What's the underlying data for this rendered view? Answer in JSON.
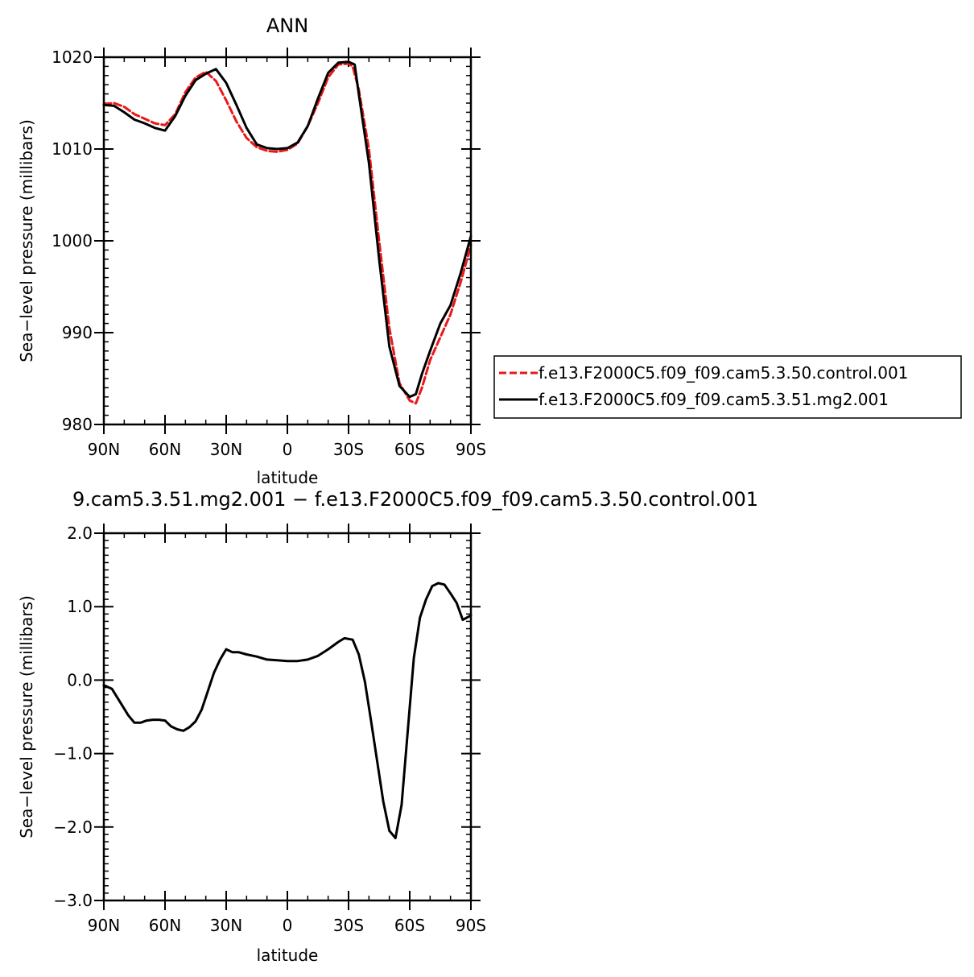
{
  "chart_data": [
    {
      "type": "line",
      "title": "ANN",
      "xlabel": "latitude",
      "ylabel": "Sea−level pressure (millibars)",
      "x_ticks": [
        {
          "value": 90,
          "label": "90N"
        },
        {
          "value": 60,
          "label": "60N"
        },
        {
          "value": 30,
          "label": "30N"
        },
        {
          "value": 0,
          "label": "0"
        },
        {
          "value": -30,
          "label": "30S"
        },
        {
          "value": -60,
          "label": "60S"
        },
        {
          "value": -90,
          "label": "90S"
        }
      ],
      "y_ticks": [
        {
          "value": 980,
          "label": "980"
        },
        {
          "value": 990,
          "label": "990"
        },
        {
          "value": 1000,
          "label": "1000"
        },
        {
          "value": 1010,
          "label": "1010"
        },
        {
          "value": 1020,
          "label": "1020"
        }
      ],
      "xlim": [
        90,
        -90
      ],
      "ylim": [
        980,
        1020
      ],
      "legend": "right",
      "series": [
        {
          "name": "f.e13.F2000C5.f09_f09.cam5.3.50.control.001",
          "color": "#e8191a",
          "dashed": true,
          "x": [
            90,
            85,
            80,
            75,
            70,
            65,
            60,
            55,
            50,
            45,
            40,
            35,
            30,
            25,
            20,
            15,
            10,
            5,
            0,
            -5,
            -10,
            -15,
            -20,
            -25,
            -30,
            -32,
            -35,
            -40,
            -45,
            -50,
            -55,
            -60,
            -63,
            -66,
            -70,
            -75,
            -80,
            -85,
            -90
          ],
          "y": [
            1014.9,
            1015.0,
            1014.6,
            1013.8,
            1013.3,
            1012.8,
            1012.6,
            1013.8,
            1016.2,
            1017.8,
            1018.4,
            1017.4,
            1015.3,
            1013.0,
            1011.2,
            1010.2,
            1009.8,
            1009.7,
            1009.9,
            1010.6,
            1012.5,
            1015.0,
            1017.8,
            1019.2,
            1019.3,
            1019.0,
            1016.5,
            1010.0,
            1000.0,
            990.5,
            984.5,
            982.6,
            982.3,
            984.0,
            987.0,
            989.5,
            992.0,
            995.5,
            999.5
          ]
        },
        {
          "name": "f.e13.F2000C5.f09_f09.cam5.3.51.mg2.001",
          "color": "#000000",
          "dashed": false,
          "x": [
            90,
            85,
            80,
            75,
            70,
            65,
            60,
            55,
            50,
            45,
            40,
            35,
            30,
            25,
            20,
            15,
            10,
            5,
            0,
            -5,
            -10,
            -15,
            -20,
            -25,
            -30,
            -33,
            -35,
            -40,
            -45,
            -50,
            -55,
            -60,
            -63,
            -66,
            -70,
            -75,
            -80,
            -85,
            -90
          ],
          "y": [
            1014.8,
            1014.7,
            1014.0,
            1013.2,
            1012.8,
            1012.3,
            1012.0,
            1013.6,
            1015.8,
            1017.5,
            1018.2,
            1018.7,
            1017.2,
            1014.8,
            1012.3,
            1010.5,
            1010.1,
            1010.0,
            1010.1,
            1010.7,
            1012.5,
            1015.5,
            1018.3,
            1019.4,
            1019.5,
            1019.2,
            1016.0,
            1008.5,
            998.0,
            988.5,
            984.2,
            983.0,
            983.3,
            985.5,
            988.0,
            991.0,
            993.0,
            996.5,
            1000.5
          ]
        }
      ]
    },
    {
      "type": "line",
      "title": "9.cam5.3.51.mg2.001 − f.e13.F2000C5.f09_f09.cam5.3.50.control.001",
      "xlabel": "latitude",
      "ylabel": "Sea−level pressure (millibars)",
      "x_ticks": [
        {
          "value": 90,
          "label": "90N"
        },
        {
          "value": 60,
          "label": "60N"
        },
        {
          "value": 30,
          "label": "30N"
        },
        {
          "value": 0,
          "label": "0"
        },
        {
          "value": -30,
          "label": "30S"
        },
        {
          "value": -60,
          "label": "60S"
        },
        {
          "value": -90,
          "label": "90S"
        }
      ],
      "y_ticks": [
        {
          "value": -3.0,
          "label": "−3.0"
        },
        {
          "value": -2.0,
          "label": "−2.0"
        },
        {
          "value": -1.0,
          "label": "−1.0"
        },
        {
          "value": 0.0,
          "label": "0.0"
        },
        {
          "value": 1.0,
          "label": "1.0"
        },
        {
          "value": 2.0,
          "label": "2.0"
        }
      ],
      "xlim": [
        90,
        -90
      ],
      "ylim": [
        -3.0,
        2.0
      ],
      "series": [
        {
          "color": "#000000",
          "dashed": false,
          "x": [
            90,
            86,
            82,
            78,
            75,
            72,
            69,
            66,
            63,
            60,
            57,
            54,
            51,
            48,
            45,
            42,
            39,
            36,
            33,
            30,
            27,
            24,
            20,
            15,
            10,
            5,
            0,
            -5,
            -10,
            -15,
            -20,
            -25,
            -28,
            -32,
            -35,
            -38,
            -41,
            -44,
            -47,
            -50,
            -53,
            -56,
            -59,
            -62,
            -65,
            -68,
            -71,
            -74,
            -77,
            -80,
            -83,
            -86,
            -90
          ],
          "y": [
            -0.07,
            -0.12,
            -0.3,
            -0.48,
            -0.58,
            -0.58,
            -0.55,
            -0.54,
            -0.54,
            -0.55,
            -0.63,
            -0.67,
            -0.69,
            -0.64,
            -0.56,
            -0.4,
            -0.15,
            0.1,
            0.28,
            0.42,
            0.38,
            0.38,
            0.35,
            0.32,
            0.28,
            0.27,
            0.26,
            0.26,
            0.28,
            0.33,
            0.42,
            0.52,
            0.57,
            0.55,
            0.35,
            -0.02,
            -0.55,
            -1.1,
            -1.65,
            -2.05,
            -2.15,
            -1.7,
            -0.7,
            0.3,
            0.85,
            1.1,
            1.28,
            1.32,
            1.3,
            1.18,
            1.05,
            0.82,
            0.88
          ]
        }
      ]
    }
  ]
}
